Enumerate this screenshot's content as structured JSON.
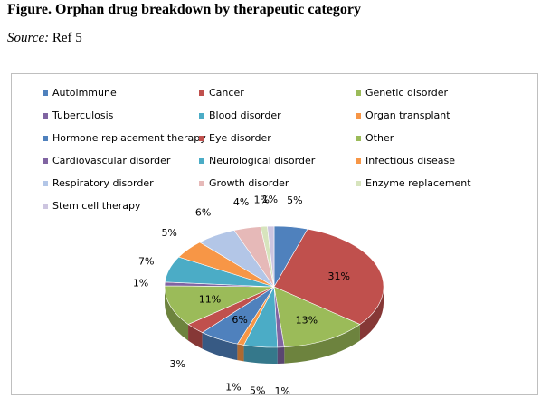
{
  "figure": {
    "title": "Figure. Orphan drug breakdown by therapeutic category",
    "source_label": "Source:",
    "source_value": " Ref 5"
  },
  "chart_data": {
    "type": "pie",
    "title": "",
    "legend_position": "top",
    "categories": [
      "Autoimmune",
      "Cancer",
      "Genetic disorder",
      "Tuberculosis",
      "Blood disorder",
      "Organ transplant",
      "Hormone replacement therapy",
      "Eye disorder",
      "Other",
      "Cardiovascular disorder",
      "Neurological disorder",
      "Infectious disease",
      "Respiratory disorder",
      "Growth disorder",
      "Enzyme replacement",
      "Stem cell therapy"
    ],
    "values": [
      5,
      31,
      13,
      1,
      5,
      1,
      6,
      3,
      11,
      1,
      7,
      5,
      6,
      4,
      1,
      1
    ],
    "labels": [
      "5%",
      "31%",
      "13%",
      "1%",
      "5%",
      "1%",
      "6%",
      "3%",
      "11%",
      "1%",
      "7%",
      "5%",
      "6%",
      "4%",
      "1%",
      "1%"
    ],
    "colors": [
      "#4f81bd",
      "#c0504d",
      "#9bbb59",
      "#8064a2",
      "#4bacc6",
      "#f79646",
      "#4f81bd",
      "#c0504d",
      "#9bbb59",
      "#8064a2",
      "#4bacc6",
      "#f79646",
      "#b3c6e7",
      "#e6b9b8",
      "#d7e4bd",
      "#cdc5e0"
    ]
  }
}
